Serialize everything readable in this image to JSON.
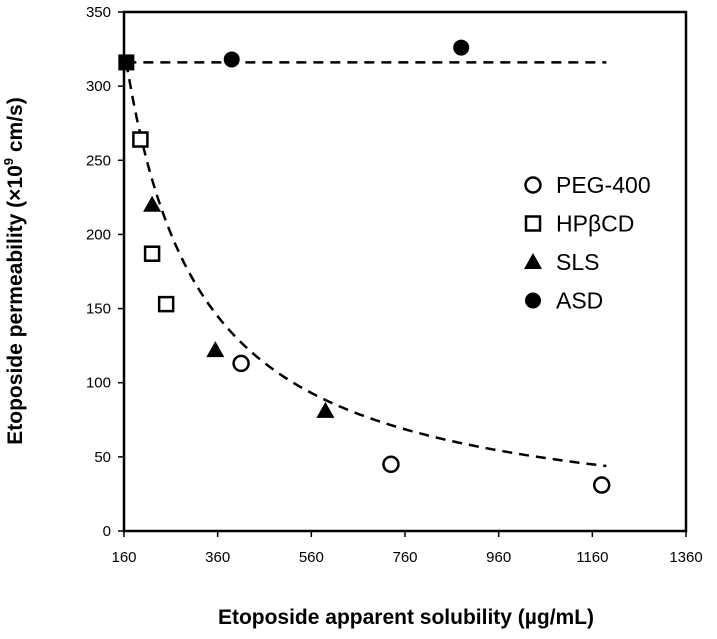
{
  "chart_data": {
    "type": "scatter",
    "xlabel": "Etoposide apparent solubility (µg/mL)",
    "ylabel_prefix": "Etoposide permeability (×10",
    "ylabel_exp": "9",
    "ylabel_suffix": " cm/s)",
    "xlim": [
      160,
      1360
    ],
    "ylim": [
      0,
      350
    ],
    "xticks": [
      160,
      360,
      560,
      760,
      960,
      1160,
      1360
    ],
    "yticks": [
      0,
      50,
      100,
      150,
      200,
      250,
      300,
      350
    ],
    "series": [
      {
        "name": "PEG-400",
        "marker": "circle-open",
        "x": [
          410,
          730,
          1180
        ],
        "y": [
          113,
          45,
          31
        ]
      },
      {
        "name": "HPβCD",
        "marker": "square-open",
        "x": [
          195,
          220,
          250
        ],
        "y": [
          264,
          187,
          153
        ]
      },
      {
        "name": "SLS",
        "marker": "triangle-filled",
        "x": [
          220,
          355,
          590
        ],
        "y": [
          220,
          122,
          81
        ]
      },
      {
        "name": "ASD",
        "marker": "circle-filled",
        "x": [
          390,
          880
        ],
        "y": [
          318,
          326
        ]
      }
    ],
    "control_point": {
      "x": 165,
      "y": 316
    },
    "reference_line": {
      "y": 316,
      "x_range": [
        165,
        1190
      ],
      "style": "dashed"
    },
    "fit_curve": {
      "style": "dashed",
      "equation": "y = 316 * 165 / x",
      "x_range": [
        165,
        1190
      ]
    },
    "legend": {
      "position": "right-middle"
    },
    "grid": false
  },
  "colors": {
    "marker": "#000000",
    "line": "#000000"
  }
}
